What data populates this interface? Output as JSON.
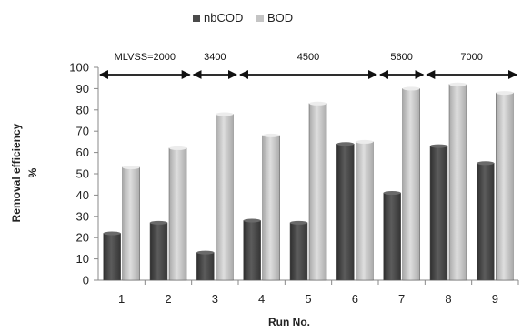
{
  "chart_data": {
    "type": "bar",
    "categories": [
      "1",
      "2",
      "3",
      "4",
      "5",
      "6",
      "7",
      "8",
      "9"
    ],
    "series": [
      {
        "name": "nbCOD",
        "values": [
          22,
          27,
          13,
          28,
          27,
          64,
          41,
          63,
          55
        ]
      },
      {
        "name": "BOD",
        "values": [
          53,
          62,
          78,
          68,
          83,
          65,
          90,
          92,
          88
        ]
      }
    ],
    "xlabel": "Run No.",
    "ylabel": "Removal efficiency %",
    "ylim": [
      0,
      100
    ],
    "yticks": [
      0,
      10,
      20,
      30,
      40,
      50,
      60,
      70,
      80,
      90,
      100
    ],
    "legend_position": "top",
    "grid": false,
    "annotations": [
      {
        "label": "MLVSS=2000",
        "from_run": 1,
        "to_run": 2
      },
      {
        "label": "3400",
        "from_run": 3,
        "to_run": 3
      },
      {
        "label": "4500",
        "from_run": 4,
        "to_run": 6
      },
      {
        "label": "5600",
        "from_run": 7,
        "to_run": 7
      },
      {
        "label": "7000",
        "from_run": 8,
        "to_run": 9
      }
    ],
    "colors": {
      "nbCOD": "#4a4a4a",
      "BOD": "#c4c4c4"
    }
  }
}
